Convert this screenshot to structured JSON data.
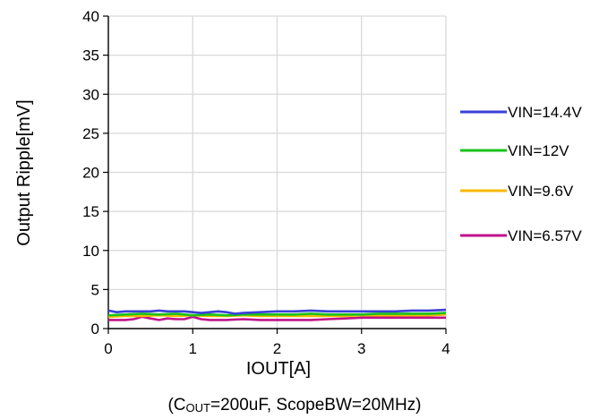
{
  "chart_data": {
    "type": "line",
    "xlabel": "IOUT[A]",
    "ylabel": "Output Ripple[mV]",
    "note": {
      "prefix": "(C",
      "subscript": "OUT",
      "suffix": "=200uF, ScopeBW=20MHz)"
    },
    "xlim": [
      0,
      4
    ],
    "ylim": [
      0,
      40
    ],
    "xticks": [
      "0",
      "1",
      "2",
      "3",
      "4"
    ],
    "yticks": [
      "0",
      "5",
      "10",
      "15",
      "20",
      "25",
      "30",
      "35",
      "40"
    ],
    "grid": true,
    "legend_position": "right",
    "series": [
      {
        "name": "VIN=14.4V",
        "color": "#3b3fd8",
        "x": [
          0,
          0.1,
          0.2,
          0.3,
          0.4,
          0.5,
          0.6,
          0.7,
          0.8,
          0.9,
          1.0,
          1.1,
          1.2,
          1.3,
          1.4,
          1.5,
          1.6,
          1.8,
          2.0,
          2.2,
          2.4,
          2.6,
          2.8,
          3.0,
          3.2,
          3.4,
          3.6,
          3.8,
          4.0
        ],
        "values": [
          2.3,
          2.1,
          2.2,
          2.2,
          2.2,
          2.2,
          2.3,
          2.2,
          2.2,
          2.2,
          2.1,
          2.0,
          2.1,
          2.2,
          2.1,
          1.9,
          2.0,
          2.1,
          2.2,
          2.2,
          2.3,
          2.2,
          2.2,
          2.2,
          2.2,
          2.2,
          2.3,
          2.3,
          2.4
        ]
      },
      {
        "name": "VIN=12V",
        "color": "#19c219",
        "x": [
          0,
          0.2,
          0.4,
          0.6,
          0.8,
          1.0,
          1.2,
          1.4,
          1.6,
          1.8,
          2.0,
          2.2,
          2.4,
          2.6,
          2.8,
          3.0,
          3.2,
          3.4,
          3.6,
          3.8,
          4.0
        ],
        "values": [
          1.7,
          1.8,
          1.9,
          1.8,
          1.9,
          1.7,
          1.8,
          1.7,
          1.8,
          1.8,
          1.8,
          1.8,
          1.9,
          1.8,
          1.8,
          1.8,
          1.9,
          1.9,
          1.9,
          1.9,
          2.0
        ]
      },
      {
        "name": "VIN=9.6V",
        "color": "#f5b800",
        "x": [
          0,
          0.2,
          0.4,
          0.6,
          0.8,
          1.0,
          1.2,
          1.4,
          1.6,
          1.8,
          2.0,
          2.2,
          2.4,
          2.6,
          2.8,
          3.0,
          3.2,
          3.4,
          3.6,
          3.8,
          4.0
        ],
        "values": [
          1.5,
          1.6,
          1.6,
          1.7,
          1.6,
          1.7,
          1.6,
          1.6,
          1.7,
          1.6,
          1.6,
          1.6,
          1.6,
          1.6,
          1.6,
          1.7,
          1.7,
          1.7,
          1.7,
          1.7,
          1.8
        ]
      },
      {
        "name": "VIN=6.57V",
        "color": "#c0128c",
        "x": [
          0,
          0.2,
          0.3,
          0.4,
          0.5,
          0.6,
          0.7,
          0.8,
          0.9,
          1.0,
          1.1,
          1.2,
          1.4,
          1.6,
          1.8,
          2.0,
          2.2,
          2.4,
          2.6,
          2.8,
          3.0,
          3.2,
          3.4,
          3.6,
          3.8,
          4.0
        ],
        "values": [
          1.1,
          1.1,
          1.2,
          1.5,
          1.3,
          1.1,
          1.3,
          1.2,
          1.2,
          1.5,
          1.2,
          1.1,
          1.1,
          1.2,
          1.1,
          1.1,
          1.1,
          1.1,
          1.2,
          1.3,
          1.4,
          1.4,
          1.4,
          1.4,
          1.4,
          1.4
        ]
      }
    ]
  }
}
